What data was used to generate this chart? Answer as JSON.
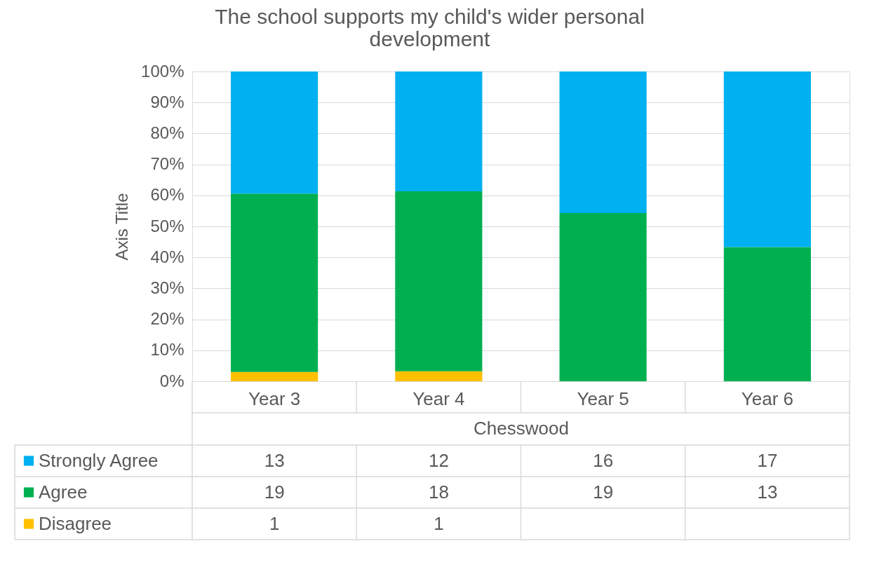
{
  "chart_data": {
    "type": "bar",
    "stacked": true,
    "title": "The school supports my child's wider personal development",
    "xlabel": "Chesswood",
    "ylabel": "Axis Title",
    "categories": [
      "Year 3",
      "Year 4",
      "Year 5",
      "Year 6"
    ],
    "series": [
      {
        "name": "Disagree",
        "color": "#ffc000",
        "values": [
          3.0,
          3.2,
          null,
          null
        ]
      },
      {
        "name": "Agree",
        "color": "#00b050",
        "values": [
          57.6,
          58.1,
          54.3,
          43.3
        ]
      },
      {
        "name": "Strongly Agree",
        "color": "#00b0f0",
        "values": [
          39.4,
          38.7,
          45.7,
          56.7
        ]
      }
    ],
    "annotations": [
      "13",
      "12",
      "16",
      "17",
      "19",
      "18",
      "19",
      "13",
      "1",
      "1"
    ],
    "ylim": [
      0,
      100
    ],
    "yticks": [
      {
        "value": 0,
        "label": "0%"
      },
      {
        "value": 10,
        "label": "10%"
      },
      {
        "value": 20,
        "label": "20%"
      },
      {
        "value": 30,
        "label": "30%"
      },
      {
        "value": 40,
        "label": "40%"
      },
      {
        "value": 50,
        "label": "50%"
      },
      {
        "value": 60,
        "label": "60%"
      },
      {
        "value": 70,
        "label": "70%"
      },
      {
        "value": 80,
        "label": "80%"
      },
      {
        "value": 90,
        "label": "90%"
      },
      {
        "value": 100,
        "label": "100%"
      }
    ],
    "grid": "y",
    "legend": "bottom"
  }
}
